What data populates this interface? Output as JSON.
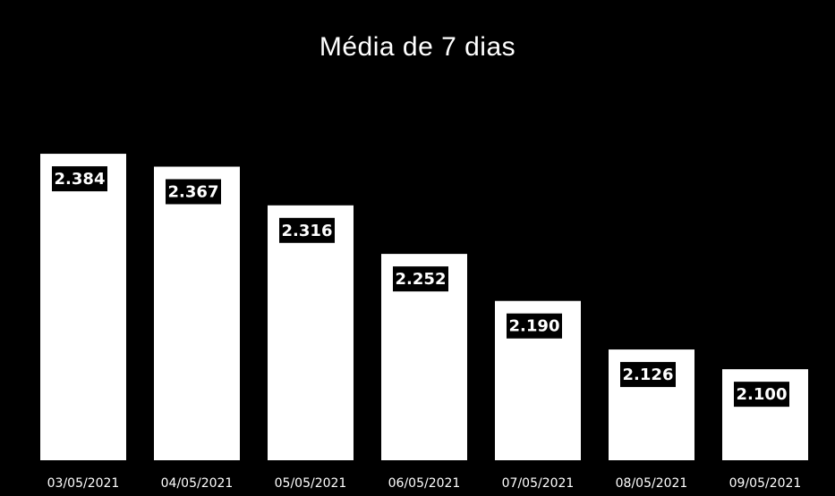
{
  "chart_data": {
    "type": "bar",
    "title": "Média de 7 dias",
    "xlabel": "",
    "ylabel": "",
    "categories": [
      "03/05/2021",
      "04/05/2021",
      "05/05/2021",
      "06/05/2021",
      "07/05/2021",
      "08/05/2021",
      "09/05/2021"
    ],
    "values": [
      2384,
      2367,
      2316,
      2252,
      2190,
      2126,
      2100
    ],
    "value_labels": [
      "2.384",
      "2.367",
      "2.316",
      "2.252",
      "2.190",
      "2.126",
      "2.100"
    ],
    "ylim": [
      1980,
      2410
    ],
    "grid": false,
    "legend": "none",
    "colors": {
      "background": "#000000",
      "bar": "#ffffff",
      "label_box": "#000000",
      "text": "#ffffff"
    }
  }
}
